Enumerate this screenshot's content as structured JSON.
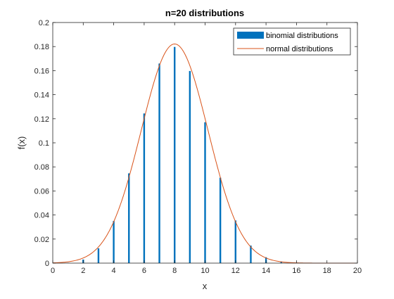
{
  "chart_data": {
    "type": "bar",
    "title": "n=20 distributions",
    "xlabel": "x",
    "ylabel": "f(x)",
    "xlim": [
      0,
      20
    ],
    "ylim": [
      0,
      0.2
    ],
    "xticks": [
      0,
      2,
      4,
      6,
      8,
      10,
      12,
      14,
      16,
      18,
      20
    ],
    "xtick_labels": [
      "0",
      "2",
      "4",
      "6",
      "8",
      "10",
      "12",
      "14",
      "16",
      "18",
      "20"
    ],
    "yticks": [
      0,
      0.02,
      0.04,
      0.06,
      0.08,
      0.1,
      0.12,
      0.14,
      0.16,
      0.18,
      0.2
    ],
    "ytick_labels": [
      "0",
      "0.02",
      "0.04",
      "0.06",
      "0.08",
      "0.1",
      "0.12",
      "0.14",
      "0.16",
      "0.18",
      "0.2"
    ],
    "grid": false,
    "legend_position": "top-right",
    "series": [
      {
        "name": "binomial distributions",
        "type": "bar",
        "color": "#0072BD",
        "x": [
          1,
          2,
          3,
          4,
          5,
          6,
          7,
          8,
          9,
          10,
          11,
          12,
          13,
          14,
          15,
          16
        ],
        "values": [
          0.0002,
          0.003,
          0.0123,
          0.035,
          0.0746,
          0.1244,
          0.1659,
          0.1797,
          0.1597,
          0.1171,
          0.071,
          0.0355,
          0.0146,
          0.0049,
          0.0013,
          0.0003
        ]
      },
      {
        "name": "normal distributions",
        "type": "line",
        "color": "#D95319",
        "mean": 8,
        "std": 2.19,
        "x_range": [
          0,
          20
        ]
      }
    ]
  }
}
